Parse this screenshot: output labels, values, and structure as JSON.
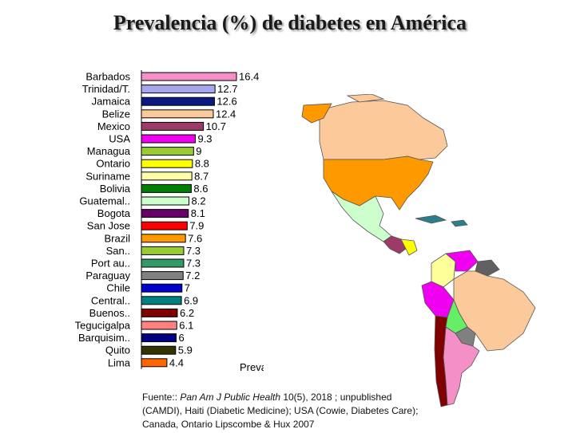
{
  "title": "Prevalencia (%) de diabetes en América",
  "chart_data": {
    "type": "bar",
    "orientation": "horizontal",
    "categories": [
      "Barbados",
      "Trinidad/T.",
      "Jamaica",
      "Belize",
      "Mexico",
      "USA",
      "Managua",
      "Ontario",
      "Suriname",
      "Bolivia",
      "Guatemal..",
      "Bogota",
      "San Jose",
      "Brazil",
      "San..",
      "Port au..",
      "Paraguay",
      "Chile",
      "Central..",
      "Buenos..",
      "Tegucigalpa",
      "Barquisim..",
      "Quito",
      "Lima"
    ],
    "values": [
      16.4,
      12.7,
      12.6,
      12.4,
      10.7,
      9.3,
      9,
      8.8,
      8.7,
      8.6,
      8.2,
      8.1,
      7.9,
      7.6,
      7.3,
      7.3,
      7.2,
      7,
      6.9,
      6.2,
      6.1,
      6,
      5.9,
      4.4
    ],
    "value_labels": [
      "16.4",
      "12.7",
      "12.6",
      "12.4",
      "10.7",
      "9.3",
      "9",
      "8.8",
      "8.7",
      "8.6",
      "8.2",
      "8.1",
      "7.9",
      "7.6",
      "7.3",
      "7.3",
      "7.2",
      "7",
      "6.9",
      "6.2",
      "6.1",
      "6",
      "5.9",
      "4.4"
    ],
    "colors": [
      "#f48fc8",
      "#a6a6ee",
      "#0a1a80",
      "#fbc99a",
      "#9c3a68",
      "#f000f0",
      "#99cc33",
      "#ffff00",
      "#ffffa8",
      "#008000",
      "#ccffcc",
      "#660066",
      "#ff0000",
      "#ff9900",
      "#99cc33",
      "#339966",
      "#808080",
      "#0000cc",
      "#008080",
      "#800000",
      "#ff8080",
      "#000080",
      "#333300",
      "#ff6600"
    ],
    "xlabel": "Prevalence (%)",
    "xlim": [
      0,
      16.4
    ],
    "grid": false,
    "legend": "none"
  },
  "source": {
    "prefix": "Fuente:: ",
    "journal": "Pan Am J Public Health",
    "rest_line1": " 10(5), 2018 ; unpublished",
    "line2": "(CAMDI), Haiti (Diabetic Medicine); USA (Cowie, Diabetes Care);",
    "line3": "Canada, Ontario Lipscombe & Hux 2007"
  },
  "map": {
    "region_colors": {
      "canada": "#fbc99a",
      "usa": "#ff9900",
      "mexico": "#ccffcc",
      "central_america": "#9c3a68",
      "venezuela": "#f000f0",
      "colombia": "#ffff99",
      "brazil": "#fbc99a",
      "peru": "#f000f0",
      "bolivia": "#66ee66",
      "paraguay": "#808080",
      "argentina": "#f48fc8",
      "chile": "#800000",
      "guianas": "#606060",
      "caribbean": "#2e7d8c",
      "ecuador": "#ffff00"
    }
  }
}
